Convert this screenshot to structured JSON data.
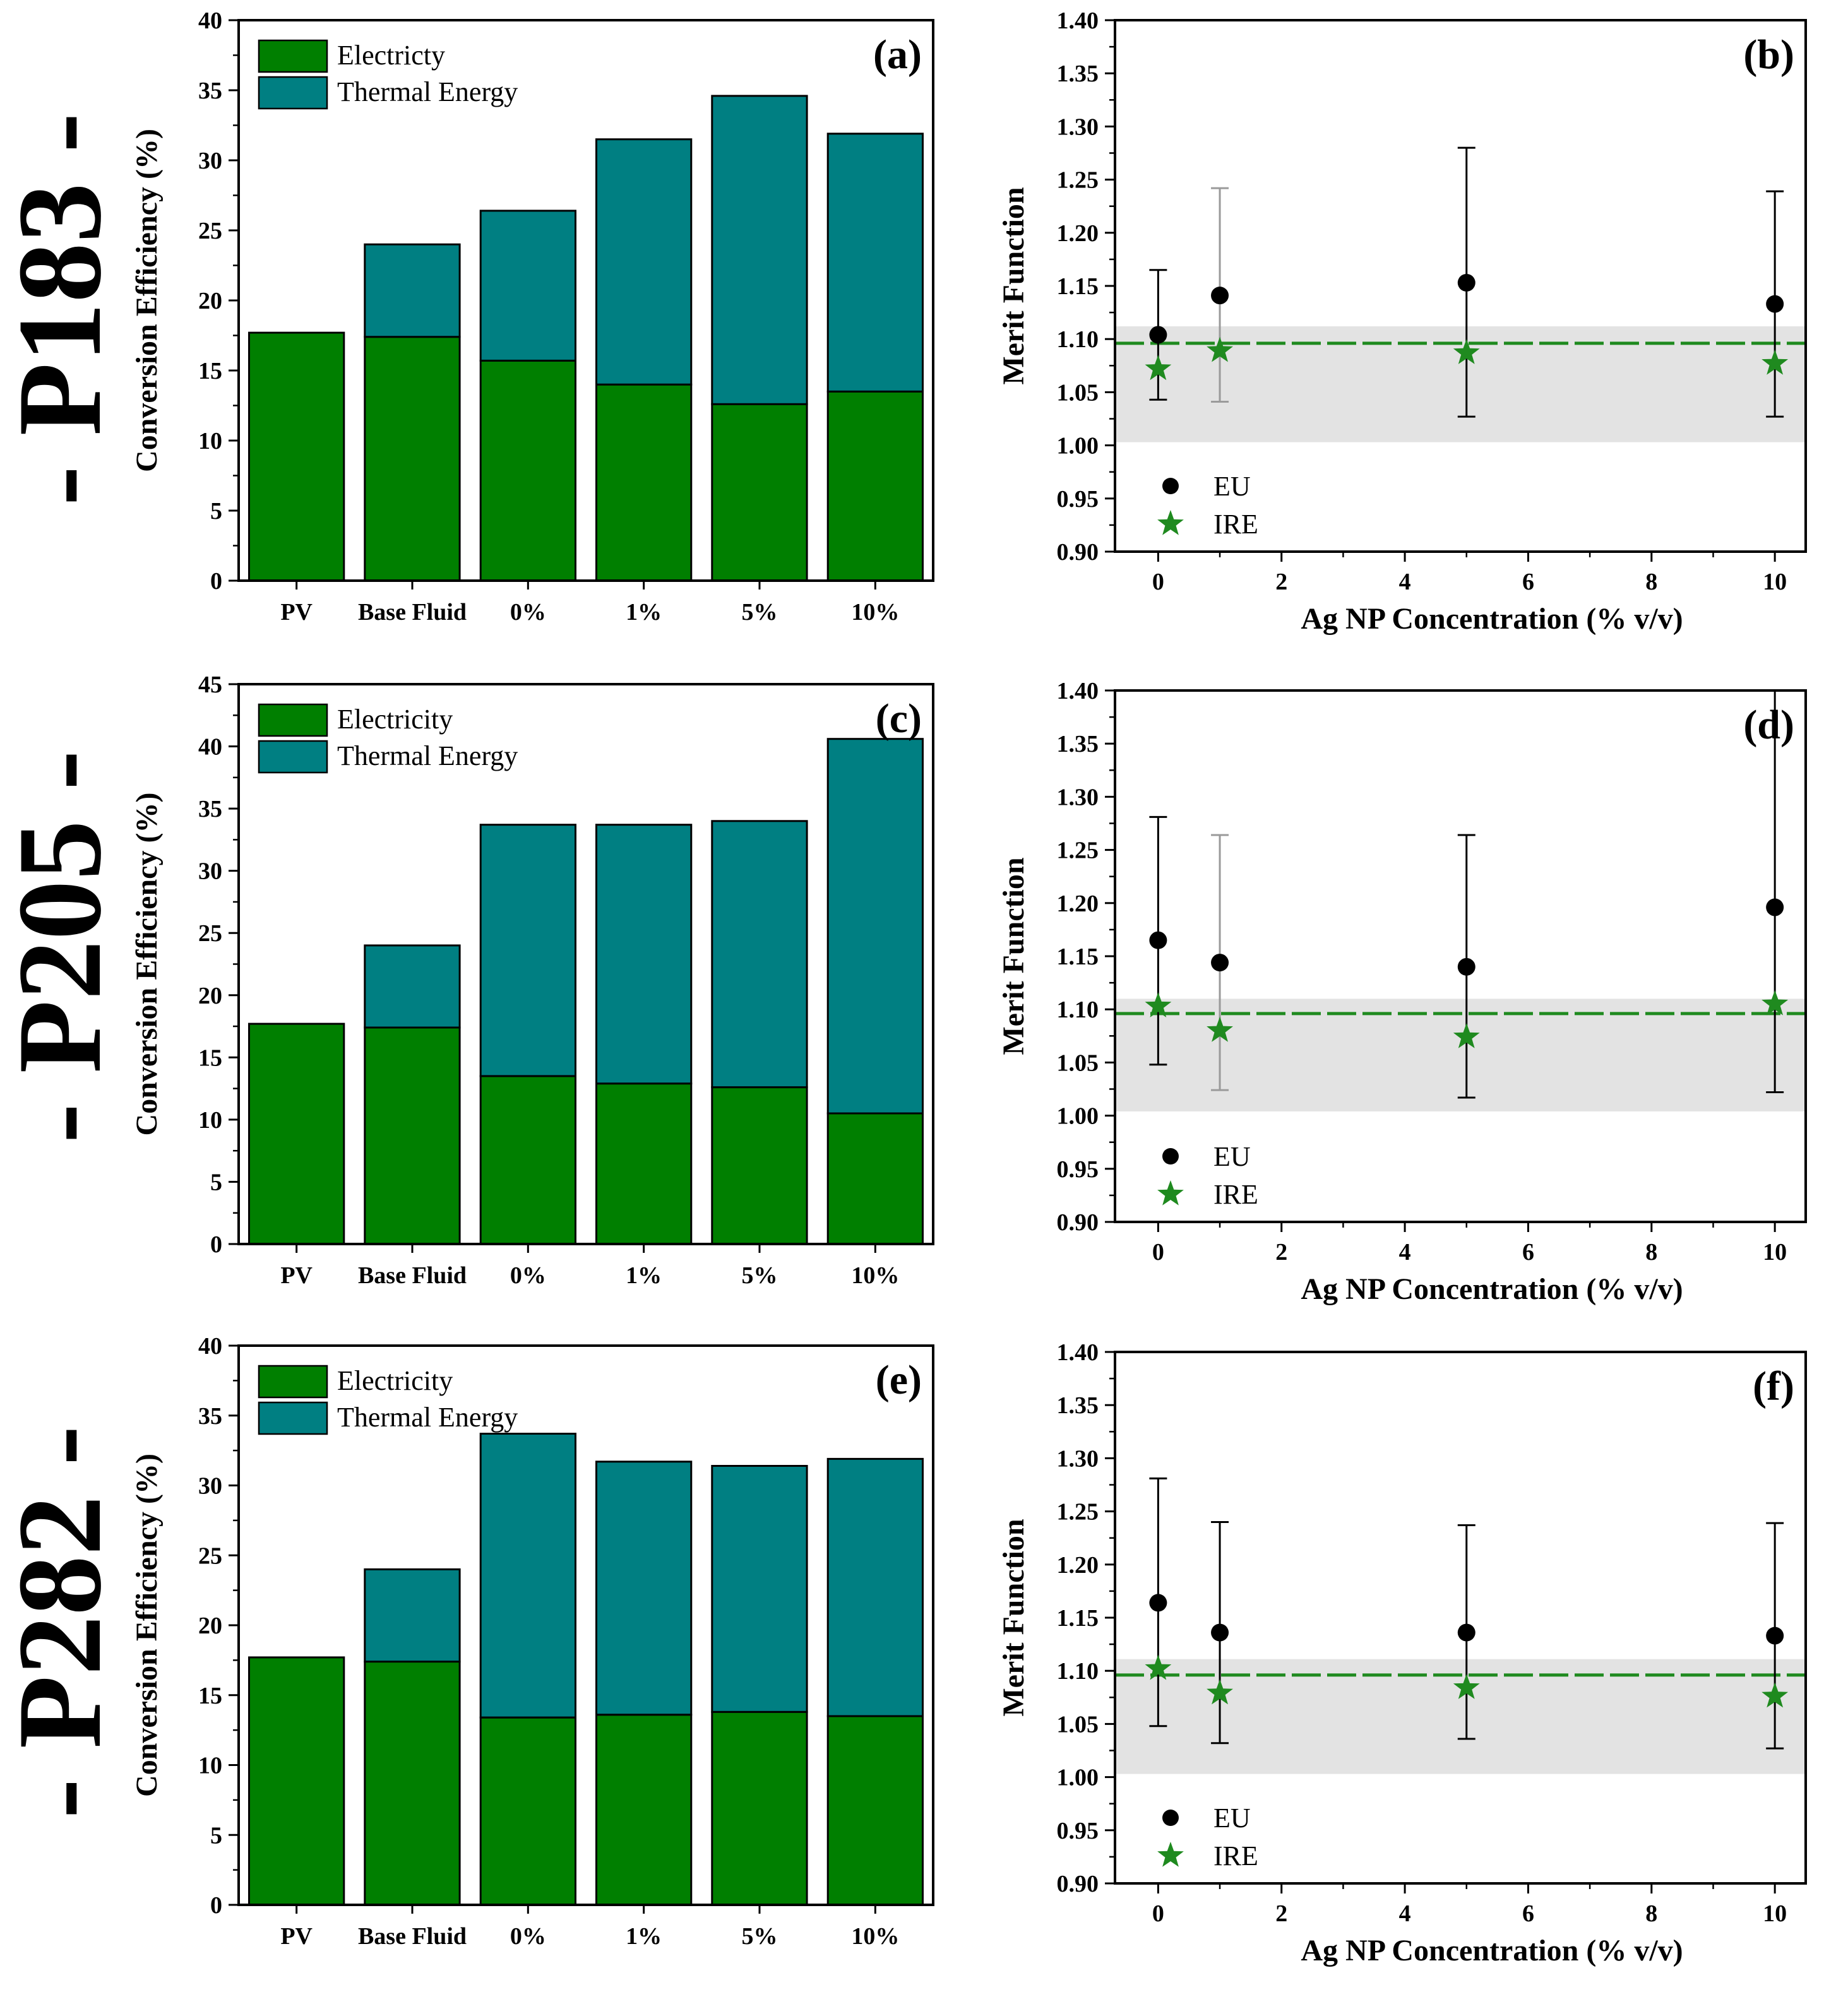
{
  "colors": {
    "electricity": "#007f00",
    "thermal": "#007f82",
    "eu_marker": "#000000",
    "ire_marker": "#1f8a1f",
    "ire_line": "#1f8a1f",
    "band": "#e3e3e3",
    "errorbar_light": "#9a9a9a",
    "errorbar_dark": "#000000"
  },
  "row_labels": [
    "- P183 -",
    "- P205 -",
    "- P282 -"
  ],
  "chart_data": [
    {
      "id": "a",
      "type": "bar",
      "stacked": true,
      "row": 0,
      "panel_label": "(a)",
      "ylabel": "Conversion Efficiency (%)",
      "xlabel": "",
      "ylim": [
        0,
        40
      ],
      "yticks": [
        0,
        5,
        10,
        15,
        20,
        25,
        30,
        35,
        40
      ],
      "categories": [
        "PV",
        "Base Fluid",
        "0%",
        "1%",
        "5%",
        "10%"
      ],
      "series": [
        {
          "name": "Electricty",
          "key": "electricity",
          "values": [
            17.7,
            17.4,
            15.7,
            14.0,
            12.6,
            13.5
          ]
        },
        {
          "name": "Thermal Energy",
          "key": "thermal",
          "values": [
            0,
            6.6,
            10.7,
            17.5,
            22.0,
            18.4
          ]
        }
      ],
      "legend": "top-left"
    },
    {
      "id": "b",
      "type": "scatter",
      "row": 0,
      "panel_label": "(b)",
      "xlabel": "Ag NP Concentration (% v/v)",
      "ylabel": "Merit Function",
      "xlim": [
        -0.7,
        10.5
      ],
      "xticks": [
        0,
        2,
        4,
        6,
        8,
        10
      ],
      "ylim": [
        0.9,
        1.4
      ],
      "yticks": [
        "0.90",
        "0.95",
        "1.00",
        "1.05",
        "1.10",
        "1.15",
        "1.20",
        "1.25",
        "1.30",
        "1.35",
        "1.40"
      ],
      "reference_line": 1.096,
      "band": [
        1.003,
        1.112
      ],
      "series": [
        {
          "name": "EU",
          "marker": "circle",
          "x": [
            0,
            1,
            5,
            10
          ],
          "y": [
            1.104,
            1.141,
            1.153,
            1.133
          ],
          "error_low": [
            1.043,
            1.041,
            1.027,
            1.027
          ],
          "error_high": [
            1.165,
            1.242,
            1.28,
            1.239
          ],
          "error_shade": [
            "dark",
            "light",
            "dark",
            "dark"
          ]
        },
        {
          "name": "IRE",
          "marker": "star",
          "x": [
            0,
            1,
            5,
            10
          ],
          "y": [
            1.072,
            1.089,
            1.087,
            1.077
          ]
        }
      ],
      "legend": "bottom-left"
    },
    {
      "id": "c",
      "type": "bar",
      "stacked": true,
      "row": 1,
      "panel_label": "(c)",
      "ylabel": "Conversion Efficiency (%)",
      "xlabel": "",
      "ylim": [
        0,
        45
      ],
      "yticks": [
        0,
        5,
        10,
        15,
        20,
        25,
        30,
        35,
        40,
        45
      ],
      "categories": [
        "PV",
        "Base Fluid",
        "0%",
        "1%",
        "5%",
        "10%"
      ],
      "series": [
        {
          "name": "Electricity",
          "key": "electricity",
          "values": [
            17.7,
            17.4,
            13.5,
            12.9,
            12.6,
            10.5
          ]
        },
        {
          "name": "Thermal Energy",
          "key": "thermal",
          "values": [
            0,
            6.6,
            20.2,
            20.8,
            21.4,
            30.1
          ]
        }
      ],
      "legend": "top-left"
    },
    {
      "id": "d",
      "type": "scatter",
      "row": 1,
      "panel_label": "(d)",
      "xlabel": "Ag NP Concentration (% v/v)",
      "ylabel": "Merit Function",
      "xlim": [
        -0.7,
        10.5
      ],
      "xticks": [
        0,
        2,
        4,
        6,
        8,
        10
      ],
      "ylim": [
        0.9,
        1.4
      ],
      "yticks": [
        "0.90",
        "0.95",
        "1.00",
        "1.05",
        "1.10",
        "1.15",
        "1.20",
        "1.25",
        "1.30",
        "1.35",
        "1.40"
      ],
      "reference_line": 1.096,
      "band": [
        1.004,
        1.11
      ],
      "series": [
        {
          "name": "EU",
          "marker": "circle",
          "x": [
            0,
            1,
            5,
            10
          ],
          "y": [
            1.165,
            1.144,
            1.14,
            1.196
          ],
          "error_low": [
            1.048,
            1.024,
            1.017,
            1.022
          ],
          "error_high": [
            1.281,
            1.264,
            1.264,
            1.4
          ],
          "error_shade": [
            "dark",
            "light",
            "dark",
            "dark"
          ]
        },
        {
          "name": "IRE",
          "marker": "star",
          "x": [
            0,
            1,
            5,
            10
          ],
          "y": [
            1.103,
            1.08,
            1.074,
            1.105
          ]
        }
      ],
      "legend": "bottom-left"
    },
    {
      "id": "e",
      "type": "bar",
      "stacked": true,
      "row": 2,
      "panel_label": "(e)",
      "ylabel": "Conversion Efficiency (%)",
      "xlabel": "",
      "ylim": [
        0,
        40
      ],
      "yticks": [
        0,
        5,
        10,
        15,
        20,
        25,
        30,
        35,
        40
      ],
      "categories": [
        "PV",
        "Base Fluid",
        "0%",
        "1%",
        "5%",
        "10%"
      ],
      "series": [
        {
          "name": "Electricity",
          "key": "electricity",
          "values": [
            17.7,
            17.4,
            13.4,
            13.6,
            13.8,
            13.5
          ]
        },
        {
          "name": "Thermal Energy",
          "key": "thermal",
          "values": [
            0,
            6.6,
            20.3,
            18.1,
            17.6,
            18.4
          ]
        }
      ],
      "legend": "top-left"
    },
    {
      "id": "f",
      "type": "scatter",
      "row": 2,
      "panel_label": "(f)",
      "xlabel": "Ag NP Concentration (% v/v)",
      "ylabel": "Merit Function",
      "xlim": [
        -0.7,
        10.5
      ],
      "xticks": [
        0,
        2,
        4,
        6,
        8,
        10
      ],
      "ylim": [
        0.9,
        1.4
      ],
      "yticks": [
        "0.90",
        "0.95",
        "1.00",
        "1.05",
        "1.10",
        "1.15",
        "1.20",
        "1.25",
        "1.30",
        "1.35",
        "1.40"
      ],
      "reference_line": 1.096,
      "band": [
        1.003,
        1.111
      ],
      "series": [
        {
          "name": "EU",
          "marker": "circle",
          "x": [
            0,
            1,
            5,
            10
          ],
          "y": [
            1.164,
            1.136,
            1.136,
            1.133
          ],
          "error_low": [
            1.048,
            1.032,
            1.036,
            1.027
          ],
          "error_high": [
            1.281,
            1.24,
            1.237,
            1.239
          ],
          "error_shade": [
            "dark",
            "dark",
            "dark",
            "dark"
          ]
        },
        {
          "name": "IRE",
          "marker": "star",
          "x": [
            0,
            1,
            5,
            10
          ],
          "y": [
            1.102,
            1.079,
            1.084,
            1.076
          ]
        }
      ],
      "legend": "bottom-left"
    }
  ]
}
